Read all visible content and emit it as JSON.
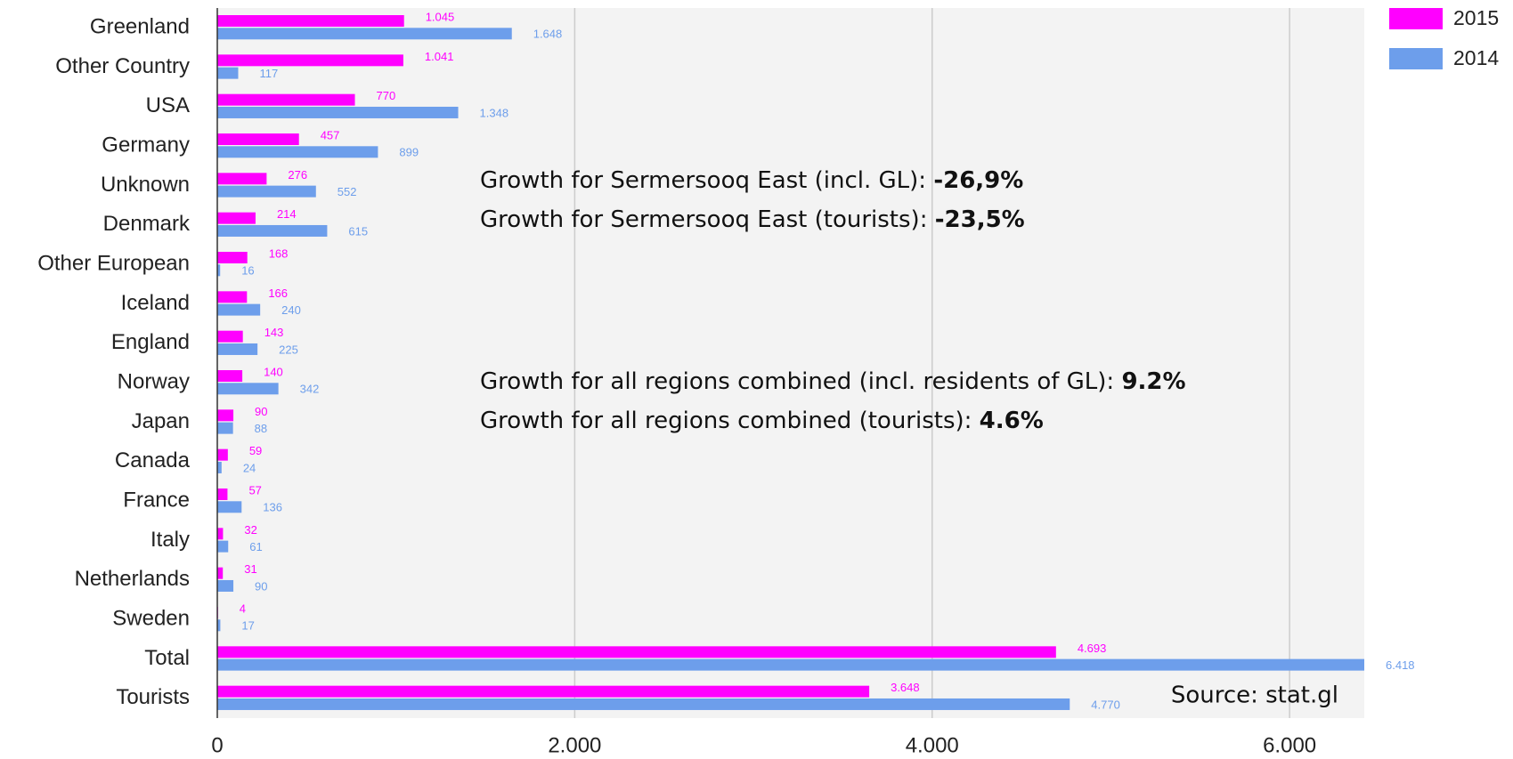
{
  "chart_data": {
    "type": "bar",
    "orientation": "horizontal",
    "categories": [
      "Greenland",
      "Other Country",
      "USA",
      "Germany",
      "Unknown",
      "Denmark",
      "Other European",
      "Iceland",
      "England",
      "Norway",
      "Japan",
      "Canada",
      "France",
      "Italy",
      "Netherlands",
      "Sweden",
      "Total",
      "Tourists"
    ],
    "series": [
      {
        "name": "2015",
        "color": "#ff00ff",
        "values": [
          1045,
          1041,
          770,
          457,
          276,
          214,
          168,
          166,
          143,
          140,
          90,
          59,
          57,
          32,
          31,
          4,
          4693,
          3648
        ],
        "value_labels": [
          "1.045",
          "1.041",
          "770",
          "457",
          "276",
          "214",
          "168",
          "166",
          "143",
          "140",
          "90",
          "59",
          "57",
          "32",
          "31",
          "4",
          "4.693",
          "3.648"
        ]
      },
      {
        "name": "2014",
        "color": "#6d9eeb",
        "values": [
          1648,
          117,
          1348,
          899,
          552,
          615,
          16,
          240,
          225,
          342,
          88,
          24,
          136,
          61,
          90,
          17,
          6418,
          4770
        ],
        "value_labels": [
          "1.648",
          "117",
          "1.348",
          "899",
          "552",
          "615",
          "16",
          "240",
          "225",
          "342",
          "88",
          "24",
          "136",
          "61",
          "90",
          "17",
          "6.418",
          "4.770"
        ]
      }
    ],
    "xlim": [
      0,
      6418
    ],
    "xticks": [
      0,
      {
        "value": 2000,
        "label": "2.000"
      },
      {
        "value": 4000,
        "label": "4.000"
      },
      {
        "value": 6000,
        "label": "6.000"
      }
    ],
    "grid": true,
    "legend": "top-right",
    "annotations": [
      {
        "text": "Growth for Sermersooq East (incl. GL): ",
        "value": "-26,9%"
      },
      {
        "text": "Growth for Sermersooq East (tourists): ",
        "value": "-23,5%"
      },
      {
        "text": "Growth for all regions combined (incl. residents of GL): ",
        "value": "9.2%"
      },
      {
        "text": "Growth for all regions combined (tourists): ",
        "value": "4.6%"
      }
    ],
    "source": "Source: stat.gl"
  }
}
